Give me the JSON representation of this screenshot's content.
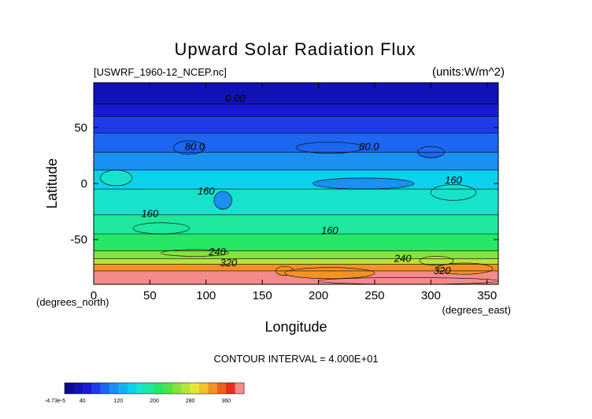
{
  "chart_data": {
    "type": "heatmap",
    "title": "Upward Solar Radiation Flux",
    "file_label": "[USWRF_1960-12_NCEP.nc]",
    "units_label": "(units:W/m^2)",
    "xlabel": "Longitude",
    "ylabel": "Latitude",
    "x_unit_label": "(degrees_east)",
    "y_unit_label": "(degrees_north)",
    "xlim": [
      0,
      360
    ],
    "ylim": [
      -90,
      90
    ],
    "x_ticks": [
      0,
      50,
      100,
      150,
      200,
      250,
      300,
      350
    ],
    "y_ticks": [
      -50,
      0,
      50
    ],
    "contour_interval_label": "CONTOUR INTERVAL = 4.000E+01",
    "colorbar": {
      "labels": [
        "-4.73e-5",
        "40",
        "120",
        "200",
        "280",
        "360"
      ],
      "label_values": [
        0,
        40,
        120,
        200,
        280,
        360
      ],
      "range": [
        0,
        400
      ],
      "colors": [
        "#0b0b8a",
        "#1111b8",
        "#1a1ad6",
        "#1d3be8",
        "#1d66f0",
        "#1b8ff2",
        "#12b4f0",
        "#0ad2ec",
        "#17e3cc",
        "#1ee89b",
        "#26e763",
        "#4fe547",
        "#86e23f",
        "#b8e43a",
        "#e6e933",
        "#f3c12c",
        "#f29225",
        "#ef5e1e",
        "#ea2c1c",
        "#f58a8a"
      ]
    },
    "contour_labels": [
      {
        "text": "0.00",
        "lon": 126,
        "lat": 73
      },
      {
        "text": "80.0",
        "lon": 90,
        "lat": 30
      },
      {
        "text": "80.0",
        "lon": 245,
        "lat": 30
      },
      {
        "text": "160",
        "lon": 100,
        "lat": -10
      },
      {
        "text": "160",
        "lon": 50,
        "lat": -30
      },
      {
        "text": "160",
        "lon": 320,
        "lat": 0
      },
      {
        "text": "160",
        "lon": 210,
        "lat": -45
      },
      {
        "text": "240",
        "lon": 110,
        "lat": -64
      },
      {
        "text": "240",
        "lon": 275,
        "lat": -70
      },
      {
        "text": "320",
        "lon": 120,
        "lat": -74
      },
      {
        "text": "320",
        "lon": 310,
        "lat": -81
      }
    ],
    "bands": [
      {
        "value": 20,
        "lat_top": 90,
        "lat_bot": 71
      },
      {
        "value": 45,
        "lat_top": 71,
        "lat_bot": 60
      },
      {
        "value": 70,
        "lat_top": 60,
        "lat_bot": 45
      },
      {
        "value": 95,
        "lat_top": 45,
        "lat_bot": 28
      },
      {
        "value": 115,
        "lat_top": 28,
        "lat_bot": 12
      },
      {
        "value": 140,
        "lat_top": 12,
        "lat_bot": -5
      },
      {
        "value": 160,
        "lat_top": -5,
        "lat_bot": -28
      },
      {
        "value": 185,
        "lat_top": -28,
        "lat_bot": -45
      },
      {
        "value": 215,
        "lat_top": -45,
        "lat_bot": -60
      },
      {
        "value": 245,
        "lat_top": -60,
        "lat_bot": -67
      },
      {
        "value": 275,
        "lat_top": -67,
        "lat_bot": -72
      },
      {
        "value": 330,
        "lat_top": -72,
        "lat_bot": -78
      },
      {
        "value": 390,
        "lat_top": -78,
        "lat_bot": -90
      }
    ],
    "blobs": [
      {
        "value": 95,
        "lon": 85,
        "lat": 32,
        "rlon": 14,
        "rlat": 6
      },
      {
        "value": 95,
        "lon": 210,
        "lat": 32,
        "rlon": 30,
        "rlat": 5
      },
      {
        "value": 95,
        "lon": 300,
        "lat": 28,
        "rlon": 12,
        "rlat": 5
      },
      {
        "value": 115,
        "lon": 240,
        "lat": 0,
        "rlon": 45,
        "rlat": 5
      },
      {
        "value": 115,
        "lon": 115,
        "lat": -15,
        "rlon": 8,
        "rlat": 8
      },
      {
        "value": 160,
        "lon": 20,
        "lat": 5,
        "rlon": 14,
        "rlat": 7
      },
      {
        "value": 160,
        "lon": 320,
        "lat": -8,
        "rlon": 20,
        "rlat": 7
      },
      {
        "value": 185,
        "lon": 60,
        "lat": -40,
        "rlon": 25,
        "rlat": 5
      },
      {
        "value": 245,
        "lon": 90,
        "lat": -62,
        "rlon": 30,
        "rlat": 3
      },
      {
        "value": 330,
        "lon": 170,
        "lat": -78,
        "rlon": 8,
        "rlat": 4
      },
      {
        "value": 330,
        "lon": 210,
        "lat": -80,
        "rlon": 40,
        "rlat": 5
      },
      {
        "value": 275,
        "lon": 305,
        "lat": -69,
        "rlon": 15,
        "rlat": 4
      },
      {
        "value": 330,
        "lon": 330,
        "lat": -76,
        "rlon": 25,
        "rlat": 5
      },
      {
        "value": 390,
        "lon": 280,
        "lat": -87,
        "rlon": 80,
        "rlat": 3
      }
    ]
  }
}
